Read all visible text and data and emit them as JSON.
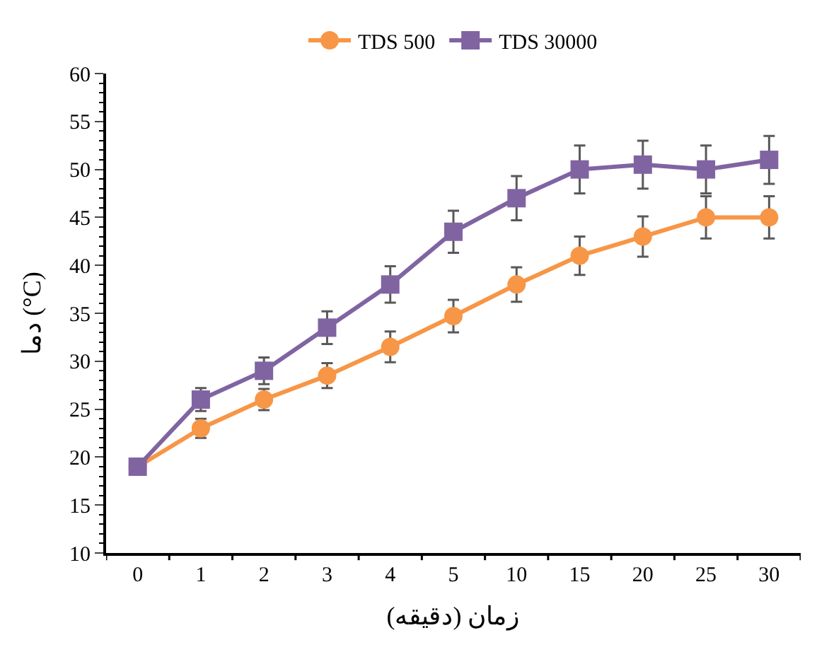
{
  "chart_data": {
    "type": "line",
    "xlabel": "زمان (دقیقه)",
    "ylabel": "دما (°C)",
    "categories": [
      "0",
      "1",
      "2",
      "3",
      "4",
      "5",
      "10",
      "15",
      "20",
      "25",
      "30"
    ],
    "ylim": [
      10,
      60
    ],
    "yticks": [
      10,
      15,
      20,
      25,
      30,
      35,
      40,
      45,
      50,
      55,
      60
    ],
    "legend": "top",
    "line_style": "solid",
    "series": [
      {
        "name": "TDS 500",
        "color": "#f79646",
        "marker": "circle",
        "values": [
          19,
          23,
          26,
          28.5,
          31.5,
          34.7,
          38,
          41,
          43,
          45,
          45
        ],
        "errors": [
          null,
          1,
          1.1,
          1.3,
          1.6,
          1.7,
          1.8,
          2,
          2.1,
          2.2,
          2.2
        ]
      },
      {
        "name": "TDS 30000",
        "color": "#8064a2",
        "marker": "square",
        "values": [
          19,
          26,
          29,
          33.5,
          38,
          43.5,
          47,
          50,
          50.5,
          50,
          51
        ],
        "errors": [
          null,
          1.2,
          1.4,
          1.7,
          1.9,
          2.2,
          2.3,
          2.5,
          2.5,
          2.5,
          2.5
        ]
      }
    ]
  }
}
